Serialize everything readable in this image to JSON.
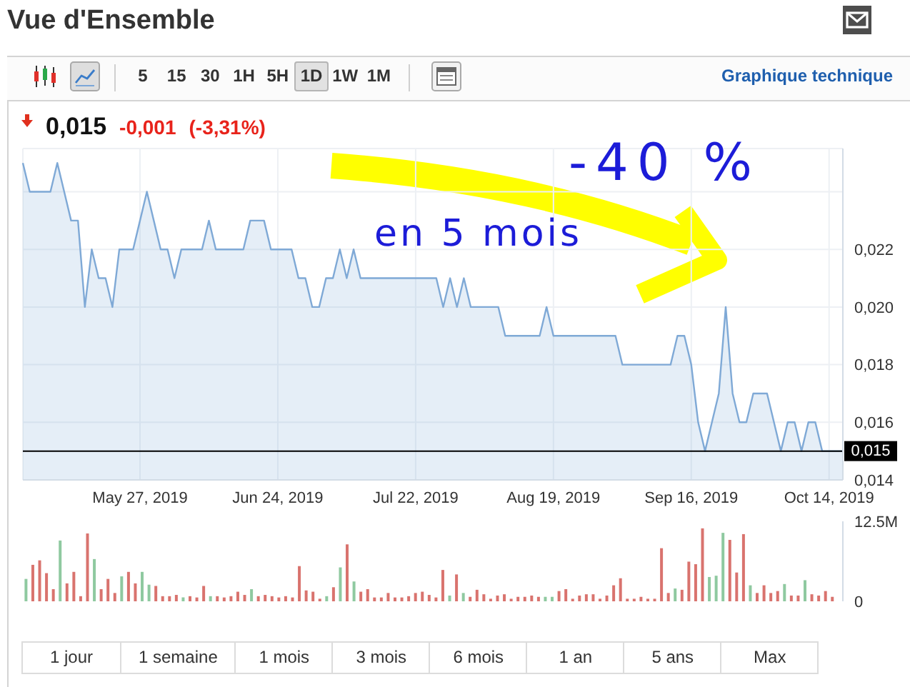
{
  "chart_data": [
    {
      "type": "other",
      "title": "Vue d'Ensemble",
      "annotations": [
        "5",
        "15",
        "30",
        "1H",
        "5H",
        "1D",
        "1W",
        "1M",
        "Graphique technique"
      ]
    },
    {
      "type": "area",
      "subtitle": "0,015 -0,001 (-3,31%)",
      "annotations": [
        "-40 %",
        "en 5 mois"
      ],
      "categories": [
        null,
        null,
        null,
        null,
        null,
        null,
        null,
        null,
        null,
        null,
        null,
        null,
        null,
        null,
        null,
        null,
        null,
        "May 27, 2019",
        null,
        null,
        null,
        null,
        null,
        null,
        null,
        null,
        null,
        null,
        null,
        null,
        null,
        null,
        null,
        null,
        null,
        null,
        null,
        "Jun 24, 2019",
        null,
        null,
        null,
        null,
        null,
        null,
        null,
        null,
        null,
        null,
        null,
        null,
        null,
        null,
        null,
        null,
        null,
        null,
        null,
        "Jul 22, 2019",
        null,
        null,
        null,
        null,
        null,
        null,
        null,
        null,
        null,
        null,
        null,
        null,
        null,
        null,
        null,
        null,
        null,
        null,
        null,
        "Aug 19, 2019",
        null,
        null,
        null,
        null,
        null,
        null,
        null,
        null,
        null,
        null,
        null,
        null,
        null,
        null,
        null,
        null,
        null,
        null,
        null,
        "Sep 16, 2019",
        null,
        null,
        null,
        null,
        null,
        null,
        null,
        null,
        null,
        null,
        null,
        null,
        null,
        null,
        null,
        null,
        null,
        null,
        null,
        "Oct 14, 2019",
        null,
        null
      ],
      "color": "#7fa9d6",
      "values": [
        0.025,
        0.024,
        0.024,
        0.024,
        0.024,
        0.025,
        0.024,
        0.023,
        0.023,
        0.02,
        0.022,
        0.021,
        0.021,
        0.02,
        0.022,
        0.022,
        0.022,
        0.023,
        0.024,
        0.023,
        0.022,
        0.022,
        0.021,
        0.022,
        0.022,
        0.022,
        0.022,
        0.023,
        0.022,
        0.022,
        0.022,
        0.022,
        0.022,
        0.023,
        0.023,
        0.023,
        0.022,
        0.022,
        0.022,
        0.022,
        0.021,
        0.021,
        0.02,
        0.02,
        0.021,
        0.021,
        0.022,
        0.021,
        0.022,
        0.021,
        0.021,
        0.021,
        0.021,
        0.021,
        0.021,
        0.021,
        0.021,
        0.021,
        0.021,
        0.021,
        0.021,
        0.02,
        0.021,
        0.02,
        0.021,
        0.02,
        0.02,
        0.02,
        0.02,
        0.02,
        0.019,
        0.019,
        0.019,
        0.019,
        0.019,
        0.019,
        0.02,
        0.019,
        0.019,
        0.019,
        0.019,
        0.019,
        0.019,
        0.019,
        0.019,
        0.019,
        0.019,
        0.018,
        0.018,
        0.018,
        0.018,
        0.018,
        0.018,
        0.018,
        0.018,
        0.019,
        0.019,
        0.018,
        0.016,
        0.015,
        0.016,
        0.017,
        0.02,
        0.017,
        0.016,
        0.016,
        0.017,
        0.017,
        0.017,
        0.016,
        0.015,
        0.016,
        0.016,
        0.015,
        0.016,
        0.016,
        0.015,
        0.015,
        0.015,
        0.015
      ],
      "ylim": [
        0.014,
        0.0255
      ],
      "yticks": [
        {
          "value": 0.014,
          "label": "0,014"
        },
        {
          "value": 0.016,
          "label": "0,016"
        },
        {
          "value": 0.018,
          "label": "0,018"
        },
        {
          "value": 0.02,
          "label": "0,020"
        },
        {
          "value": 0.022,
          "label": "0,022"
        },
        {
          "value": 0.024,
          "label": null
        }
      ],
      "grid": true,
      "ref_lines": [
        {
          "axis": "y",
          "value": 0.015,
          "label": "0,015",
          "color": "#000000"
        }
      ]
    },
    {
      "type": "bar",
      "tick_labels": "y",
      "categories": [
        null,
        null,
        null,
        null,
        null,
        null,
        null,
        null,
        null,
        null,
        null,
        null,
        null,
        null,
        null,
        null,
        null,
        null,
        null,
        null,
        null,
        null,
        null,
        null,
        null,
        null,
        null,
        null,
        null,
        null,
        null,
        null,
        null,
        null,
        null,
        null,
        null,
        null,
        null,
        null,
        null,
        null,
        null,
        null,
        null,
        null,
        null,
        null,
        null,
        null,
        null,
        null,
        null,
        null,
        null,
        null,
        null,
        null,
        null,
        null,
        null,
        null,
        null,
        null,
        null,
        null,
        null,
        null,
        null,
        null,
        null,
        null,
        null,
        null,
        null,
        null,
        null,
        null,
        null,
        null,
        null,
        null,
        null,
        null,
        null,
        null,
        null,
        null,
        null,
        null,
        null,
        null,
        null,
        null,
        null,
        null,
        null,
        null,
        null,
        null,
        null,
        null,
        null,
        null,
        null,
        null,
        null,
        null,
        null,
        null,
        null,
        null,
        null,
        null,
        null,
        null,
        null,
        null,
        null,
        null
      ],
      "values": [
        3500000,
        5700000,
        6400000,
        4400000,
        1900000,
        9500000,
        2800000,
        4600000,
        800000,
        10600000,
        6600000,
        1900000,
        3500000,
        1300000,
        3900000,
        4600000,
        2800000,
        4600000,
        2600000,
        2400000,
        800000,
        800000,
        1000000,
        600000,
        800000,
        600000,
        2400000,
        800000,
        800000,
        600000,
        800000,
        1500000,
        1000000,
        1900000,
        800000,
        1000000,
        800000,
        600000,
        800000,
        600000,
        5500000,
        1700000,
        1500000,
        400000,
        800000,
        2200000,
        5300000,
        8900000,
        3100000,
        1500000,
        1900000,
        600000,
        600000,
        1300000,
        600000,
        600000,
        800000,
        1300000,
        1500000,
        1000000,
        600000,
        4900000,
        900000,
        4200000,
        1300000,
        700000,
        1800000,
        1100000,
        400000,
        900000,
        1100000,
        400000,
        700000,
        700000,
        900000,
        700000,
        700000,
        700000,
        1600000,
        1900000,
        400000,
        900000,
        1100000,
        1100000,
        400000,
        900000,
        2500000,
        3600000,
        400000,
        400000,
        700000,
        400000,
        400000,
        8300000,
        1300000,
        2000000,
        1800000,
        6200000,
        5800000,
        11400000,
        3800000,
        4000000,
        10700000,
        9600000,
        4500000,
        10500000,
        2500000,
        1300000,
        2500000,
        1300000,
        1600000,
        2700000,
        900000,
        900000,
        3300000,
        1100000,
        900000,
        1600000,
        700000,
        null
      ],
      "colors": [
        "#8fc9a0",
        "#d9736e",
        "#d9736e",
        "#d9736e",
        "#d9736e",
        "#8fc9a0",
        "#d9736e",
        "#d9736e",
        "#d9736e",
        "#d9736e",
        "#8fc9a0",
        "#d9736e",
        "#d9736e",
        "#d9736e",
        "#8fc9a0",
        "#d9736e",
        "#d9736e",
        "#8fc9a0",
        "#8fc9a0",
        "#d9736e",
        "#d9736e",
        "#d9736e",
        "#d9736e",
        "#8fc9a0",
        "#d9736e",
        "#d9736e",
        "#d9736e",
        "#8fc9a0",
        "#d9736e",
        "#d9736e",
        "#d9736e",
        "#d9736e",
        "#d9736e",
        "#8fc9a0",
        "#d9736e",
        "#d9736e",
        "#d9736e",
        "#d9736e",
        "#d9736e",
        "#d9736e",
        "#d9736e",
        "#d9736e",
        "#d9736e",
        "#d9736e",
        "#8fc9a0",
        "#d9736e",
        "#8fc9a0",
        "#d9736e",
        "#8fc9a0",
        "#d9736e",
        "#d9736e",
        "#d9736e",
        "#d9736e",
        "#d9736e",
        "#d9736e",
        "#d9736e",
        "#d9736e",
        "#d9736e",
        "#d9736e",
        "#d9736e",
        "#d9736e",
        "#d9736e",
        "#8fc9a0",
        "#d9736e",
        "#8fc9a0",
        "#d9736e",
        "#d9736e",
        "#d9736e",
        "#d9736e",
        "#d9736e",
        "#d9736e",
        "#d9736e",
        "#d9736e",
        "#d9736e",
        "#d9736e",
        "#d9736e",
        "#8fc9a0",
        "#8fc9a0",
        "#d9736e",
        "#d9736e",
        "#d9736e",
        "#d9736e",
        "#d9736e",
        "#d9736e",
        "#d9736e",
        "#d9736e",
        "#d9736e",
        "#d9736e",
        "#d9736e",
        "#d9736e",
        "#d9736e",
        "#d9736e",
        "#d9736e",
        "#d9736e",
        "#d9736e",
        "#8fc9a0",
        "#d9736e",
        "#d9736e",
        "#d9736e",
        "#d9736e",
        "#8fc9a0",
        "#8fc9a0",
        "#8fc9a0",
        "#d9736e",
        "#d9736e",
        "#d9736e",
        "#8fc9a0",
        "#d9736e",
        "#d9736e",
        "#d9736e",
        "#d9736e",
        "#8fc9a0",
        "#d9736e",
        "#d9736e",
        "#8fc9a0",
        "#d9736e",
        "#d9736e",
        "#d9736e",
        "#d9736e",
        "#d9736e"
      ],
      "ylim": [
        0,
        12500000
      ],
      "yticks": [
        0,
        {
          "value": 12500000,
          "label": "12.5M"
        }
      ]
    },
    {
      "type": "other",
      "annotations": [
        "1 jour",
        "1 semaine",
        "1 mois",
        "3 mois",
        "6 mois",
        "1 an",
        "5 ans",
        "Max"
      ]
    }
  ]
}
